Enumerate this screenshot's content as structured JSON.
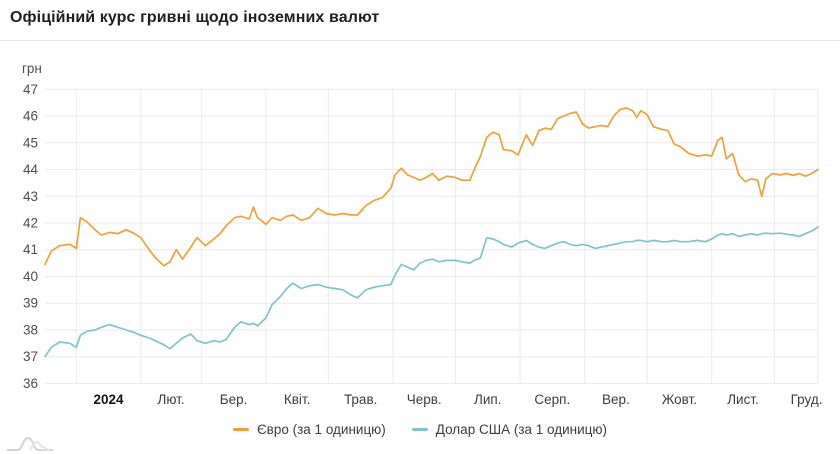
{
  "header": {
    "title": "Офіційний курс гривні щодо іноземних валют"
  },
  "chart_data": {
    "type": "line",
    "title": "Офіційний курс гривні щодо іноземних валют",
    "unit_label": "грн",
    "ylabel": "грн",
    "ylim": [
      36,
      47
    ],
    "y_ticks": [
      47,
      46,
      45,
      44,
      43,
      42,
      41,
      40,
      39,
      38,
      37,
      36
    ],
    "x_tick_labels": [
      "2024",
      "Лют.",
      "Бер.",
      "Квіт.",
      "Трав.",
      "Черв.",
      "Лип.",
      "Серп.",
      "Вер.",
      "Жовт.",
      "Лист.",
      "Груд."
    ],
    "x_range": [
      "2023-12-17",
      "2024-12-22"
    ],
    "grid": true,
    "legend_position": "bottom",
    "grid_color": "#ebebeb",
    "dates": [
      "2023-12-17",
      "2023-12-20",
      "2023-12-24",
      "2023-12-29",
      "2024-01-01",
      "2024-01-03",
      "2024-01-06",
      "2024-01-10",
      "2024-01-13",
      "2024-01-17",
      "2024-01-21",
      "2024-01-25",
      "2024-01-29",
      "2024-02-01",
      "2024-02-05",
      "2024-02-08",
      "2024-02-12",
      "2024-02-15",
      "2024-02-18",
      "2024-02-21",
      "2024-02-25",
      "2024-02-28",
      "2024-03-03",
      "2024-03-07",
      "2024-03-10",
      "2024-03-13",
      "2024-03-17",
      "2024-03-20",
      "2024-03-24",
      "2024-03-26",
      "2024-03-28",
      "2024-04-01",
      "2024-04-04",
      "2024-04-08",
      "2024-04-11",
      "2024-04-14",
      "2024-04-18",
      "2024-04-22",
      "2024-04-26",
      "2024-04-30",
      "2024-05-04",
      "2024-05-08",
      "2024-05-12",
      "2024-05-15",
      "2024-05-19",
      "2024-05-23",
      "2024-05-27",
      "2024-05-31",
      "2024-06-02",
      "2024-06-05",
      "2024-06-08",
      "2024-06-11",
      "2024-06-14",
      "2024-06-17",
      "2024-06-20",
      "2024-06-23",
      "2024-06-27",
      "2024-07-01",
      "2024-07-04",
      "2024-07-08",
      "2024-07-10",
      "2024-07-13",
      "2024-07-16",
      "2024-07-19",
      "2024-07-22",
      "2024-07-24",
      "2024-07-28",
      "2024-07-31",
      "2024-08-04",
      "2024-08-07",
      "2024-08-10",
      "2024-08-13",
      "2024-08-16",
      "2024-08-19",
      "2024-08-22",
      "2024-08-25",
      "2024-08-28",
      "2024-08-31",
      "2024-09-03",
      "2024-09-06",
      "2024-09-09",
      "2024-09-12",
      "2024-09-15",
      "2024-09-18",
      "2024-09-21",
      "2024-09-24",
      "2024-09-26",
      "2024-09-28",
      "2024-10-01",
      "2024-10-04",
      "2024-10-08",
      "2024-10-11",
      "2024-10-14",
      "2024-10-17",
      "2024-10-21",
      "2024-10-25",
      "2024-10-29",
      "2024-11-01",
      "2024-11-04",
      "2024-11-06",
      "2024-11-08",
      "2024-11-11",
      "2024-11-14",
      "2024-11-17",
      "2024-11-20",
      "2024-11-23",
      "2024-11-25",
      "2024-11-27",
      "2024-11-30",
      "2024-12-04",
      "2024-12-07",
      "2024-12-10",
      "2024-12-13",
      "2024-12-16",
      "2024-12-19",
      "2024-12-22"
    ],
    "series": [
      {
        "name": "Євро (за 1 одиницю)",
        "color": "#efa234",
        "values": [
          40.45,
          40.95,
          41.15,
          41.2,
          41.05,
          42.2,
          42.05,
          41.75,
          41.55,
          41.65,
          41.6,
          41.75,
          41.6,
          41.45,
          41.0,
          40.7,
          40.4,
          40.55,
          41.0,
          40.65,
          41.1,
          41.45,
          41.15,
          41.4,
          41.6,
          41.9,
          42.2,
          42.25,
          42.15,
          42.6,
          42.2,
          41.95,
          42.2,
          42.1,
          42.25,
          42.3,
          42.1,
          42.2,
          42.55,
          42.35,
          42.3,
          42.35,
          42.3,
          42.3,
          42.65,
          42.85,
          42.95,
          43.3,
          43.8,
          44.05,
          43.8,
          43.7,
          43.6,
          43.7,
          43.85,
          43.6,
          43.75,
          43.7,
          43.6,
          43.6,
          44.0,
          44.5,
          45.2,
          45.4,
          45.3,
          44.75,
          44.7,
          44.55,
          45.3,
          44.9,
          45.45,
          45.55,
          45.5,
          45.9,
          46.0,
          46.1,
          46.15,
          45.7,
          45.55,
          45.6,
          45.65,
          45.6,
          46.0,
          46.25,
          46.3,
          46.2,
          45.95,
          46.2,
          46.05,
          45.6,
          45.5,
          45.45,
          44.95,
          44.85,
          44.6,
          44.5,
          44.55,
          44.5,
          45.1,
          45.2,
          44.4,
          44.6,
          43.8,
          43.55,
          43.65,
          43.6,
          43.0,
          43.65,
          43.85,
          43.8,
          43.85,
          43.78,
          43.85,
          43.75,
          43.85,
          44.0
        ]
      },
      {
        "name": "Долар США (за 1 одиницю)",
        "color": "#7cc5cd",
        "values": [
          37.0,
          37.35,
          37.55,
          37.5,
          37.35,
          37.8,
          37.95,
          38.0,
          38.1,
          38.2,
          38.1,
          38.0,
          37.9,
          37.8,
          37.7,
          37.6,
          37.45,
          37.3,
          37.5,
          37.7,
          37.85,
          37.6,
          37.5,
          37.6,
          37.55,
          37.65,
          38.1,
          38.3,
          38.2,
          38.25,
          38.15,
          38.45,
          38.95,
          39.25,
          39.55,
          39.75,
          39.55,
          39.65,
          39.7,
          39.6,
          39.55,
          39.5,
          39.3,
          39.2,
          39.5,
          39.6,
          39.65,
          39.7,
          40.05,
          40.45,
          40.35,
          40.25,
          40.5,
          40.6,
          40.65,
          40.55,
          40.6,
          40.6,
          40.55,
          40.5,
          40.6,
          40.7,
          41.45,
          41.4,
          41.3,
          41.2,
          41.1,
          41.25,
          41.35,
          41.2,
          41.1,
          41.05,
          41.15,
          41.25,
          41.3,
          41.2,
          41.15,
          41.2,
          41.15,
          41.05,
          41.1,
          41.15,
          41.2,
          41.25,
          41.3,
          41.3,
          41.35,
          41.35,
          41.3,
          41.35,
          41.3,
          41.3,
          41.35,
          41.3,
          41.3,
          41.35,
          41.3,
          41.4,
          41.55,
          41.6,
          41.55,
          41.6,
          41.5,
          41.55,
          41.6,
          41.55,
          41.6,
          41.62,
          41.6,
          41.62,
          41.58,
          41.55,
          41.5,
          41.6,
          41.7,
          41.85
        ]
      }
    ]
  }
}
